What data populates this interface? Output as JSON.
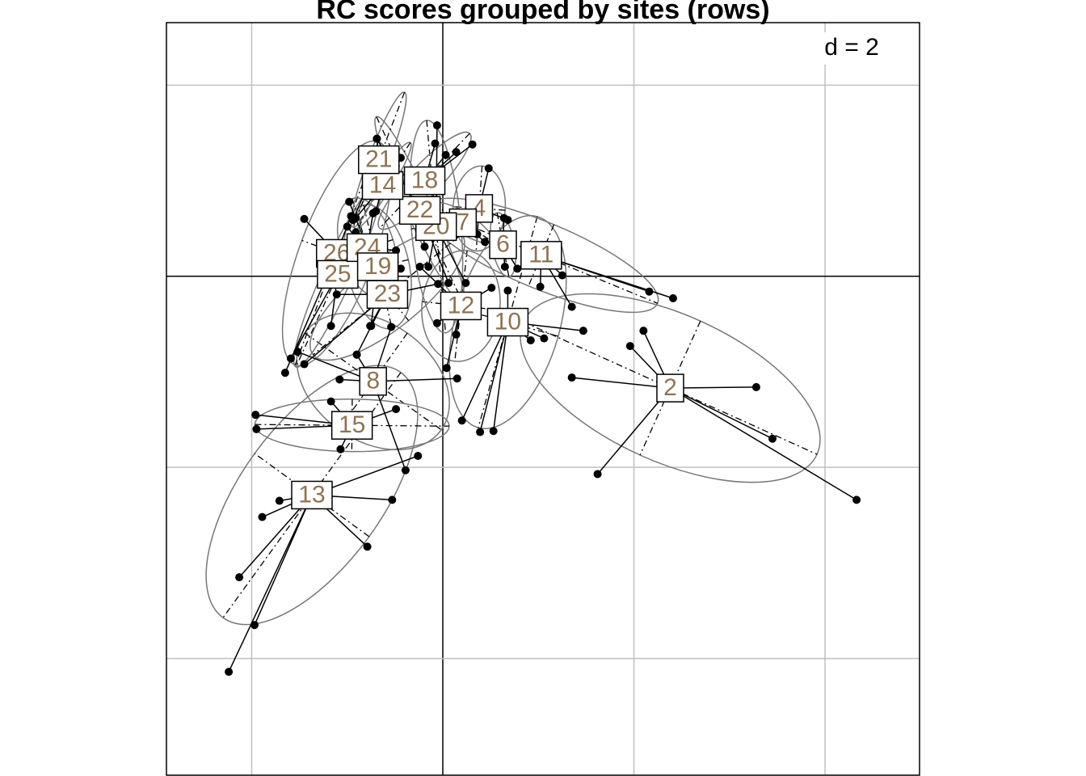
{
  "chart_data": {
    "type": "scatter",
    "title": "RC scores grouped by sites (rows)",
    "grid_label": "d = 2",
    "xlim": [
      -2.892,
      4.989
    ],
    "ylim": [
      -5.222,
      2.655
    ],
    "xticks": [
      -2,
      0,
      2,
      4
    ],
    "yticks": [
      -4,
      -2,
      0,
      2
    ],
    "grid": true,
    "point_color": "#000000",
    "label_color": "#8b7355",
    "ellipse_color": "#777777",
    "groups": [
      {
        "name": "2",
        "x": 2.38,
        "y": -1.17,
        "points": [
          [
            3.28,
            -1.16
          ],
          [
            3.45,
            -1.7
          ],
          [
            4.33,
            -2.34
          ],
          [
            1.62,
            -2.07
          ],
          [
            1.35,
            -1.06
          ],
          [
            2.1,
            -0.57
          ],
          [
            1.96,
            -0.73
          ]
        ]
      },
      {
        "name": "13",
        "x": -1.37,
        "y": -2.29,
        "points": [
          [
            -2.24,
            -4.14
          ],
          [
            -1.97,
            -3.65
          ],
          [
            -2.13,
            -3.15
          ],
          [
            -1.89,
            -2.52
          ],
          [
            -0.79,
            -2.83
          ],
          [
            -1.71,
            -2.35
          ],
          [
            -0.53,
            -2.34
          ],
          [
            -0.26,
            -1.88
          ]
        ]
      },
      {
        "name": "8",
        "x": -0.73,
        "y": -1.1,
        "points": [
          [
            -0.9,
            -0.82
          ],
          [
            -0.39,
            -2.03
          ],
          [
            -1.52,
            -0.79
          ],
          [
            -1.08,
            -1.08
          ],
          [
            0.15,
            -1.07
          ],
          [
            -0.54,
            -0.53
          ]
        ]
      },
      {
        "name": "15",
        "x": -0.95,
        "y": -1.56,
        "points": [
          [
            -1.96,
            -1.45
          ],
          [
            -1.95,
            -1.6
          ],
          [
            -0.49,
            -1.39
          ],
          [
            -1.17,
            -1.31
          ],
          [
            -1.07,
            -1.81
          ]
        ]
      },
      {
        "name": "10",
        "x": 0.68,
        "y": -0.48,
        "points": [
          [
            0.39,
            -1.63
          ],
          [
            0.53,
            -1.62
          ],
          [
            0.2,
            -1.51
          ],
          [
            0.92,
            -0.67
          ],
          [
            1.47,
            -0.57
          ],
          [
            1.06,
            -0.65
          ],
          [
            0.68,
            -0.15
          ]
        ]
      },
      {
        "name": "12",
        "x": 0.19,
        "y": -0.31,
        "points": [
          [
            -0.06,
            -0.49
          ],
          [
            0.14,
            -0.61
          ],
          [
            0.04,
            -0.96
          ],
          [
            0.51,
            -0.12
          ],
          [
            -0.24,
            0.1
          ]
        ]
      },
      {
        "name": "11",
        "x": 1.03,
        "y": 0.22,
        "points": [
          [
            2.16,
            -0.16
          ],
          [
            2.41,
            -0.23
          ],
          [
            1.35,
            -0.32
          ],
          [
            1.25,
            0.01
          ],
          [
            1.02,
            -0.11
          ]
        ]
      },
      {
        "name": "6",
        "x": 0.63,
        "y": 0.33,
        "points": [
          [
            0.64,
            0.61
          ],
          [
            0.65,
            0.1
          ],
          [
            0.78,
            0.08
          ],
          [
            0.54,
            0.25
          ]
        ]
      },
      {
        "name": "23",
        "x": -0.58,
        "y": -0.19,
        "points": [
          [
            -1.45,
            -0.92
          ],
          [
            -0.9,
            -0.82
          ],
          [
            -0.76,
            -0.52
          ],
          [
            -1.11,
            -0.19
          ],
          [
            -0.05,
            -0.08
          ]
        ]
      },
      {
        "name": "26",
        "x": -1.11,
        "y": 0.24,
        "points": [
          [
            -1.45,
            0.6
          ],
          [
            -1.65,
            -1.01
          ],
          [
            -0.96,
            0.63
          ]
        ]
      },
      {
        "name": "25",
        "x": -1.1,
        "y": 0.02,
        "points": [
          [
            -1.59,
            -0.86
          ],
          [
            -1.17,
            -0.52
          ],
          [
            -0.91,
            0.46
          ]
        ]
      },
      {
        "name": "24",
        "x": -0.79,
        "y": 0.3,
        "points": [
          [
            -0.98,
            0.78
          ],
          [
            -0.73,
            0.66
          ],
          [
            -0.49,
            0.27
          ]
        ]
      },
      {
        "name": "19",
        "x": -0.68,
        "y": 0.1,
        "points": [
          [
            -0.75,
            -0.52
          ],
          [
            -0.44,
            0.08
          ],
          [
            -1.0,
            0.52
          ]
        ]
      },
      {
        "name": "4",
        "x": 0.38,
        "y": 0.71,
        "points": [
          [
            0.48,
            1.13
          ],
          [
            0.68,
            0.59
          ],
          [
            0.36,
            0.44
          ]
        ]
      },
      {
        "name": "7",
        "x": 0.21,
        "y": 0.56,
        "points": [
          [
            0.03,
            0.57
          ],
          [
            0.44,
            0.36
          ]
        ]
      },
      {
        "name": "20",
        "x": -0.07,
        "y": 0.52,
        "points": [
          [
            -0.06,
            1.58
          ],
          [
            -0.15,
            0.1
          ],
          [
            0.24,
            -0.07
          ]
        ]
      },
      {
        "name": "22",
        "x": -0.24,
        "y": 0.69,
        "points": [
          [
            -0.69,
            1.44
          ],
          [
            -0.19,
            0.31
          ],
          [
            0.06,
            -0.07
          ]
        ]
      },
      {
        "name": "18",
        "x": -0.19,
        "y": 1.0,
        "points": [
          [
            -0.08,
            1.39
          ],
          [
            0.03,
            1.27
          ],
          [
            0.14,
            1.3
          ],
          [
            0.31,
            1.38
          ]
        ]
      },
      {
        "name": "14",
        "x": -0.63,
        "y": 0.95,
        "points": [
          [
            -0.91,
            0.61
          ],
          [
            -0.7,
            0.68
          ],
          [
            -0.44,
            1.24
          ]
        ]
      },
      {
        "name": "21",
        "x": -0.67,
        "y": 1.22,
        "points": [
          [
            -0.69,
            1.44
          ],
          [
            -0.94,
            0.59
          ]
        ]
      }
    ]
  }
}
